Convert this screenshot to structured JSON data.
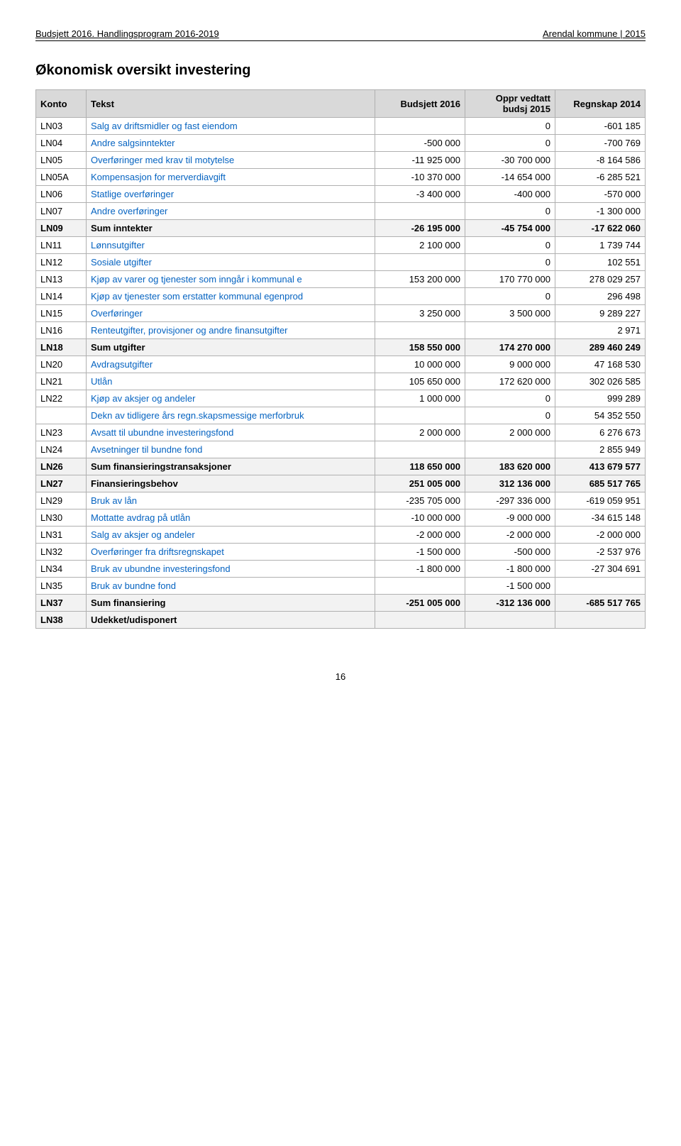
{
  "header": {
    "left": "Budsjett 2016. Handlingsprogram 2016-2019",
    "right": "Arendal kommune | 2015"
  },
  "title": "Økonomisk oversikt investering",
  "columns": {
    "konto": "Konto",
    "tekst": "Tekst",
    "c1": "Budsjett 2016",
    "c2": "Oppr vedtatt budsj 2015",
    "c3": "Regnskap 2014"
  },
  "rows": [
    {
      "konto": "LN03",
      "tekst": "Salg av driftsmidler og fast eiendom",
      "c1": "",
      "c2": "0",
      "c3": "-601 185",
      "link": true
    },
    {
      "konto": "LN04",
      "tekst": "Andre salgsinntekter",
      "c1": "-500 000",
      "c2": "0",
      "c3": "-700 769",
      "link": true
    },
    {
      "konto": "LN05",
      "tekst": "Overføringer med krav til motytelse",
      "c1": "-11 925 000",
      "c2": "-30 700 000",
      "c3": "-8 164 586",
      "link": true
    },
    {
      "konto": "LN05A",
      "tekst": "Kompensasjon for merverdiavgift",
      "c1": "-10 370 000",
      "c2": "-14 654 000",
      "c3": "-6 285 521",
      "link": true
    },
    {
      "konto": "LN06",
      "tekst": "Statlige overføringer",
      "c1": "-3 400 000",
      "c2": "-400 000",
      "c3": "-570 000",
      "link": true
    },
    {
      "konto": "LN07",
      "tekst": "Andre overføringer",
      "c1": "",
      "c2": "0",
      "c3": "-1 300 000",
      "link": true
    },
    {
      "konto": "LN09",
      "tekst": "Sum inntekter",
      "c1": "-26 195 000",
      "c2": "-45 754 000",
      "c3": "-17 622 060",
      "sum": true
    },
    {
      "konto": "LN11",
      "tekst": "Lønnsutgifter",
      "c1": "2 100 000",
      "c2": "0",
      "c3": "1 739 744",
      "link": true
    },
    {
      "konto": "LN12",
      "tekst": "Sosiale utgifter",
      "c1": "",
      "c2": "0",
      "c3": "102 551",
      "link": true
    },
    {
      "konto": "LN13",
      "tekst": "Kjøp av varer og tjenester som inngår i kommunal e",
      "c1": "153 200 000",
      "c2": "170 770 000",
      "c3": "278 029 257",
      "link": true
    },
    {
      "konto": "LN14",
      "tekst": "Kjøp av tjenester som erstatter kommunal egenprod",
      "c1": "",
      "c2": "0",
      "c3": "296 498",
      "link": true
    },
    {
      "konto": "LN15",
      "tekst": "Overføringer",
      "c1": "3 250 000",
      "c2": "3 500 000",
      "c3": "9 289 227",
      "link": true
    },
    {
      "konto": "LN16",
      "tekst": "Renteutgifter, provisjoner og andre finansutgifter",
      "c1": "",
      "c2": "",
      "c3": "2 971",
      "link": true
    },
    {
      "konto": "LN18",
      "tekst": "Sum utgifter",
      "c1": "158 550 000",
      "c2": "174 270 000",
      "c3": "289 460 249",
      "sum": true
    },
    {
      "konto": "LN20",
      "tekst": "Avdragsutgifter",
      "c1": "10 000 000",
      "c2": "9 000 000",
      "c3": "47 168 530",
      "link": true
    },
    {
      "konto": "LN21",
      "tekst": "Utlån",
      "c1": "105 650 000",
      "c2": "172 620 000",
      "c3": "302 026 585",
      "link": true
    },
    {
      "konto": "LN22",
      "tekst": "Kjøp av aksjer og andeler",
      "c1": "1 000 000",
      "c2": "0",
      "c3": "999 289",
      "link": true
    },
    {
      "konto": "",
      "tekst": "Dekn av tidligere års regn.skapsmessige merforbruk",
      "c1": "",
      "c2": "0",
      "c3": "54 352 550",
      "link": true
    },
    {
      "konto": "LN23",
      "tekst": "Avsatt til ubundne investeringsfond",
      "c1": "2 000 000",
      "c2": "2 000 000",
      "c3": "6 276 673",
      "link": true
    },
    {
      "konto": "LN24",
      "tekst": "Avsetninger til bundne fond",
      "c1": "",
      "c2": "",
      "c3": "2 855 949",
      "link": true
    },
    {
      "konto": "LN26",
      "tekst": "Sum finansieringstransaksjoner",
      "c1": "118 650 000",
      "c2": "183 620 000",
      "c3": "413 679 577",
      "sum": true
    },
    {
      "konto": "LN27",
      "tekst": "Finansieringsbehov",
      "c1": "251 005 000",
      "c2": "312 136 000",
      "c3": "685 517 765",
      "sum": true
    },
    {
      "konto": "LN29",
      "tekst": "Bruk av lån",
      "c1": "-235 705 000",
      "c2": "-297 336 000",
      "c3": "-619 059 951",
      "link": true
    },
    {
      "konto": "LN30",
      "tekst": "Mottatte avdrag på utlån",
      "c1": "-10 000 000",
      "c2": "-9 000 000",
      "c3": "-34 615 148",
      "link": true
    },
    {
      "konto": "LN31",
      "tekst": "Salg av aksjer og andeler",
      "c1": "-2 000 000",
      "c2": "-2 000 000",
      "c3": "-2 000 000",
      "link": true
    },
    {
      "konto": "LN32",
      "tekst": "Overføringer fra driftsregnskapet",
      "c1": "-1 500 000",
      "c2": "-500 000",
      "c3": "-2 537 976",
      "link": true
    },
    {
      "konto": "LN34",
      "tekst": "Bruk av ubundne investeringsfond",
      "c1": "-1 800 000",
      "c2": "-1 800 000",
      "c3": "-27 304 691",
      "link": true
    },
    {
      "konto": "LN35",
      "tekst": "Bruk av bundne fond",
      "c1": "",
      "c2": "-1 500 000",
      "c3": "",
      "link": true
    },
    {
      "konto": "LN37",
      "tekst": "Sum finansiering",
      "c1": "-251 005 000",
      "c2": "-312 136 000",
      "c3": "-685 517 765",
      "sum": true
    },
    {
      "konto": "LN38",
      "tekst": "Udekket/udisponert",
      "c1": "",
      "c2": "",
      "c3": "",
      "sum": true
    }
  ],
  "page_number": "16",
  "style": {
    "link_color": "#0563c1",
    "header_bg": "#d9d9d9",
    "sum_bg": "#f2f2f2",
    "border_color": "#b0b0b0",
    "font_size_body": 13,
    "font_size_title": 20
  }
}
